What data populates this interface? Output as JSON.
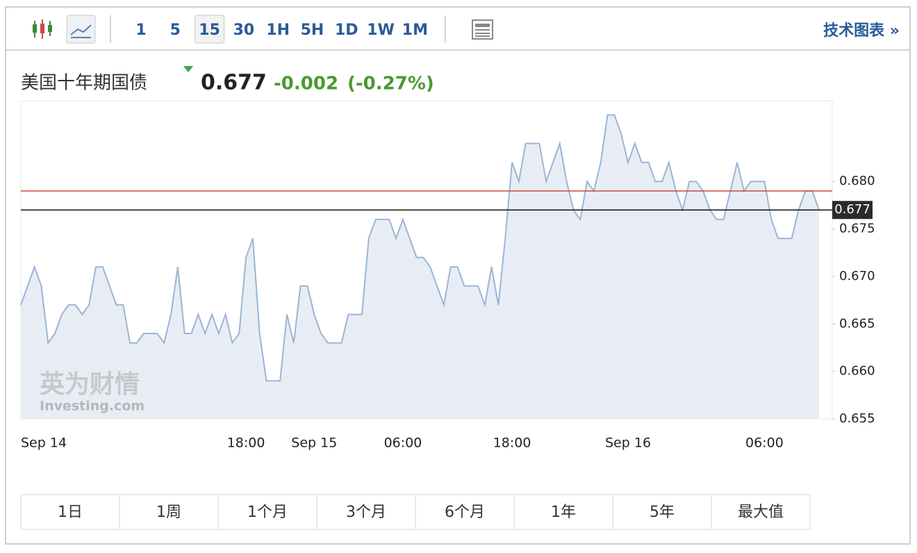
{
  "toolbar": {
    "intervals": [
      "1",
      "5",
      "15",
      "30",
      "1H",
      "5H",
      "1D",
      "1W",
      "1M"
    ],
    "selected": 2,
    "link": "技术图表 »"
  },
  "header": {
    "name": "美国十年期国债",
    "price": "0.677",
    "change": "-0.002",
    "change_pct": "(-0.27%)"
  },
  "watermark": {
    "cn": "英为财情",
    "en": "Investing.com"
  },
  "chart_data": {
    "type": "area",
    "color": "#9ab5d6",
    "fill": "#e8edf5",
    "categories": [
      "Sep 14",
      null,
      null,
      null,
      null,
      null,
      null,
      null,
      null,
      null,
      null,
      null,
      null,
      null,
      null,
      null,
      null,
      null,
      null,
      null,
      null,
      null,
      null,
      null,
      null,
      null,
      null,
      null,
      null,
      null,
      null,
      null,
      null,
      "18:00",
      null,
      null,
      null,
      null,
      null,
      null,
      null,
      null,
      null,
      "Sep 15",
      null,
      null,
      null,
      null,
      null,
      null,
      null,
      null,
      null,
      null,
      null,
      null,
      "06:00",
      null,
      null,
      null,
      null,
      null,
      null,
      null,
      null,
      null,
      null,
      null,
      null,
      null,
      null,
      null,
      "18:00",
      null,
      null,
      null,
      null,
      null,
      null,
      null,
      null,
      null,
      null,
      null,
      null,
      null,
      null,
      null,
      null,
      "Sep 16",
      null,
      null,
      null,
      null,
      null,
      null,
      null,
      null,
      null,
      null,
      null,
      null,
      null,
      null,
      null,
      null,
      null,
      null,
      null,
      "06:00",
      null,
      null,
      null,
      null,
      null,
      null,
      null,
      null
    ],
    "values": [
      0.667,
      0.669,
      0.671,
      0.669,
      0.663,
      0.664,
      0.666,
      0.667,
      0.667,
      0.666,
      0.667,
      0.671,
      0.671,
      0.669,
      0.667,
      0.667,
      0.663,
      0.663,
      0.664,
      0.664,
      0.664,
      0.663,
      0.666,
      0.671,
      0.664,
      0.664,
      0.666,
      0.664,
      0.666,
      0.664,
      0.666,
      0.663,
      0.664,
      0.672,
      0.674,
      0.664,
      0.659,
      0.659,
      0.659,
      0.666,
      0.663,
      0.669,
      0.669,
      0.666,
      0.664,
      0.663,
      0.663,
      0.663,
      0.666,
      0.666,
      0.666,
      0.674,
      0.676,
      0.676,
      0.676,
      0.674,
      0.676,
      0.674,
      0.672,
      0.672,
      0.671,
      0.669,
      0.667,
      0.671,
      0.671,
      0.669,
      0.669,
      0.669,
      0.667,
      0.671,
      0.667,
      0.674,
      0.682,
      0.68,
      0.684,
      0.684,
      0.684,
      0.68,
      0.682,
      0.684,
      0.68,
      0.677,
      0.676,
      0.68,
      0.679,
      0.682,
      0.687,
      0.687,
      0.685,
      0.682,
      0.684,
      0.682,
      0.682,
      0.68,
      0.68,
      0.682,
      0.679,
      0.677,
      0.68,
      0.68,
      0.679,
      0.677,
      0.676,
      0.676,
      0.679,
      0.682,
      0.679,
      0.68,
      0.68,
      0.68,
      0.676,
      0.674,
      0.674,
      0.674,
      0.677,
      0.679,
      0.679,
      0.677
    ],
    "ylim": [
      0.655,
      0.6885
    ],
    "yticks": [
      0.655,
      {
        "value": 0.66,
        "label": "0.660"
      },
      0.665,
      {
        "value": 0.67,
        "label": "0.670"
      },
      0.675,
      {
        "value": 0.68,
        "label": "0.680"
      }
    ],
    "hlines": [
      {
        "value": 0.679,
        "color": "#c94a3f"
      },
      {
        "value": 0.677,
        "color": "#111111"
      }
    ]
  },
  "ranges": [
    "1日",
    "1周",
    "1个月",
    "3个月",
    "6个月",
    "1年",
    "5年",
    "最大值"
  ]
}
